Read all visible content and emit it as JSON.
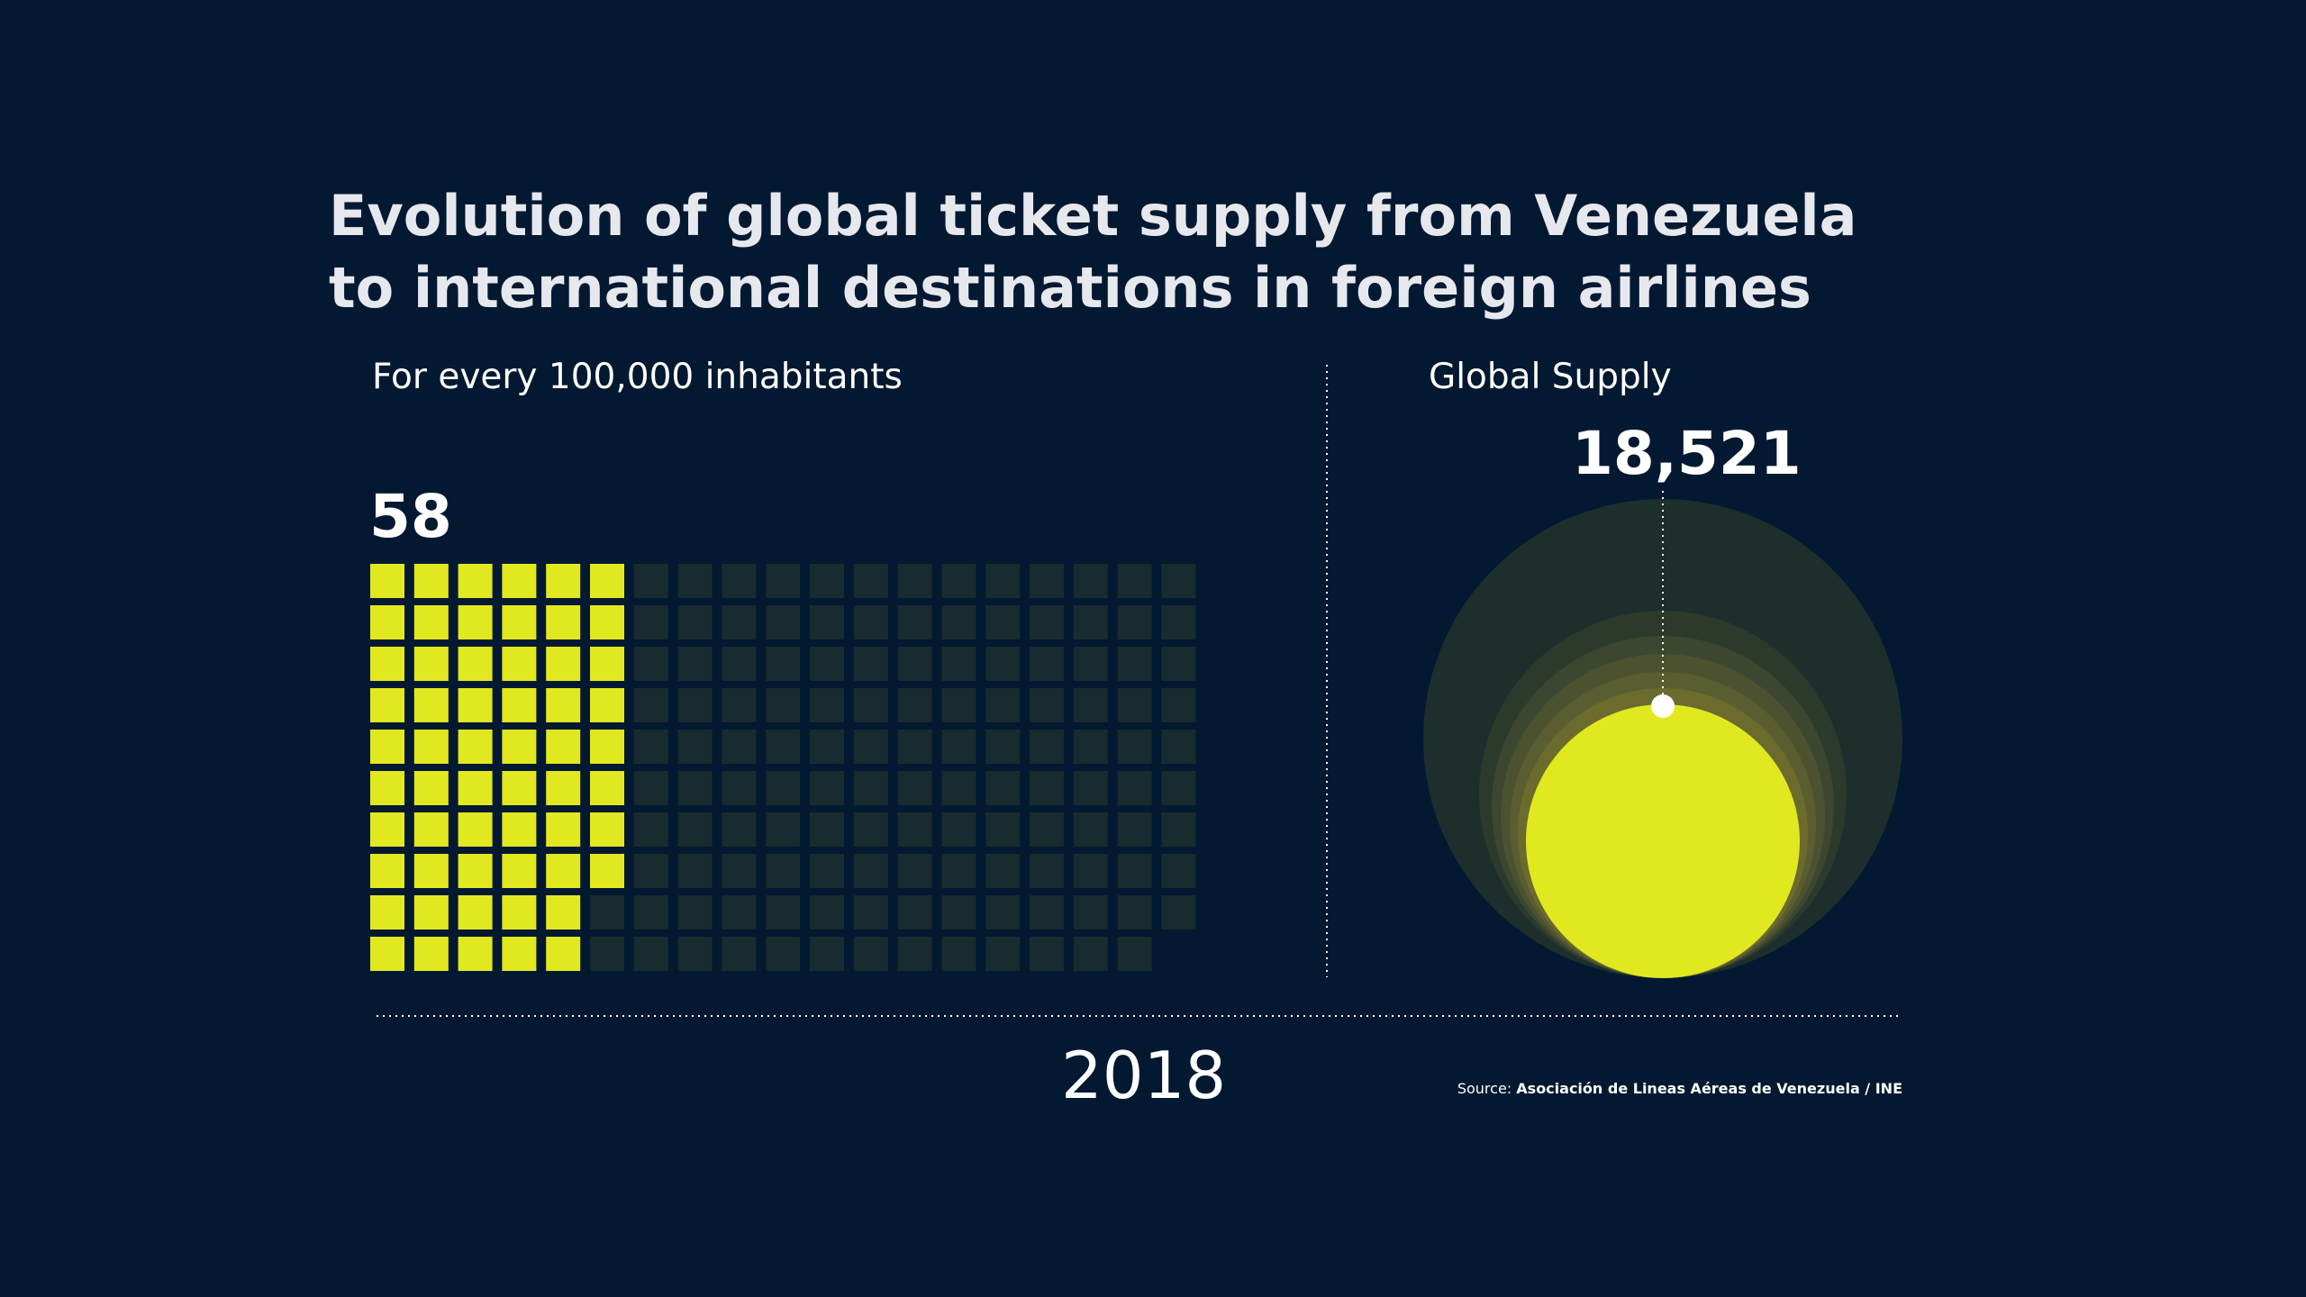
{
  "title": {
    "line1": "Evolution of global ticket supply from Venezuela",
    "line2": "to international destinations in foreign airlines"
  },
  "subtitle_left": "For every 100,000 inhabitants",
  "subtitle_right": "Global Supply",
  "year": "2018",
  "source": {
    "label": "Source:",
    "text": "Asociación de Lineas Aéreas de Venezuela / INE"
  },
  "colors": {
    "background": "#021931",
    "highlight": "#e2e81f",
    "inactive": "#182b2e"
  },
  "chart_data": [
    {
      "type": "waffle",
      "title": "For every 100,000 inhabitants",
      "value": 58,
      "value_label": "58",
      "cells_total": 189
    },
    {
      "type": "bubble",
      "title": "Global Supply",
      "value": 18521,
      "value_label": "18,521"
    }
  ]
}
